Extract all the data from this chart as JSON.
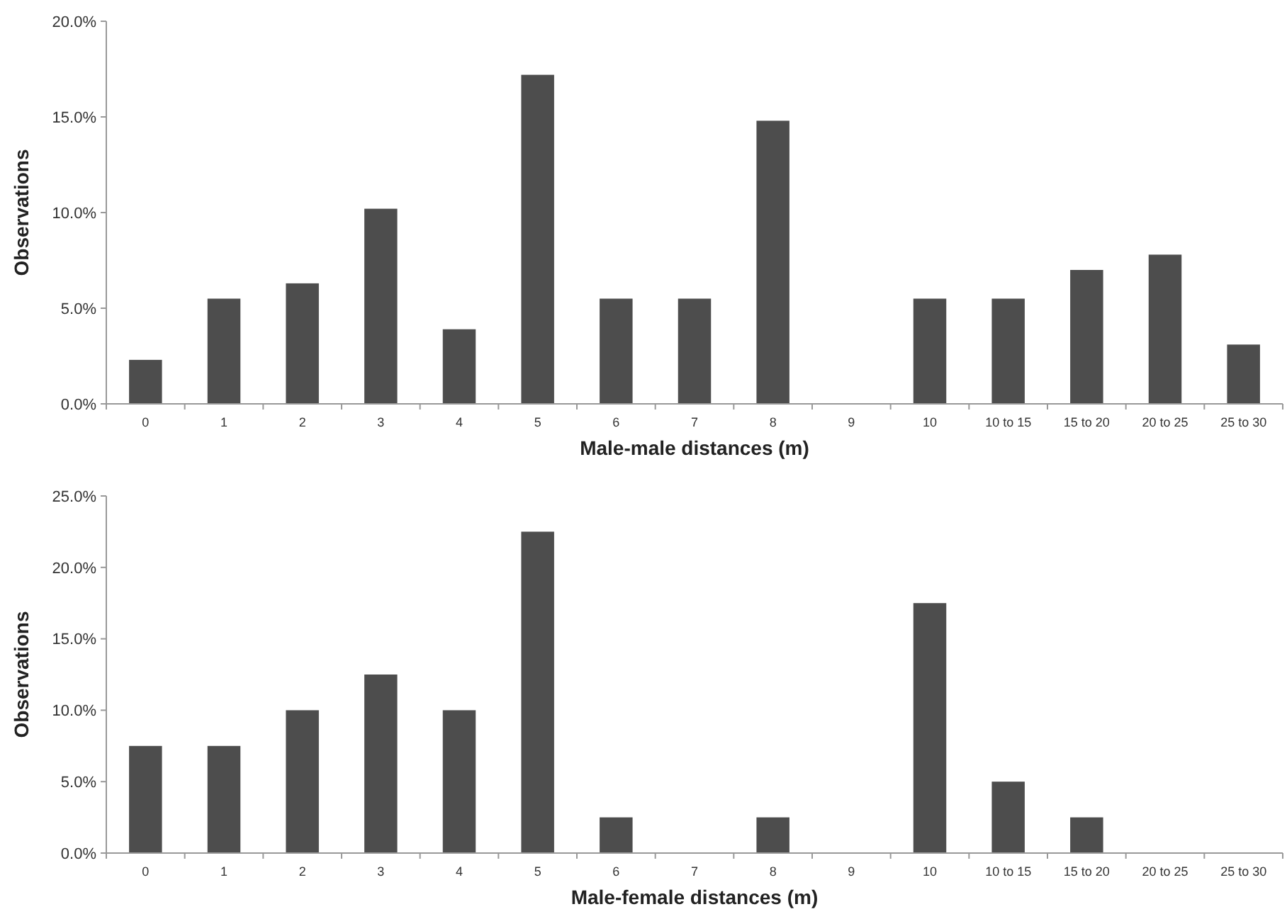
{
  "chart_data": [
    {
      "type": "bar",
      "xlabel": "Male-male distances (m)",
      "ylabel": "Observations",
      "categories": [
        "0",
        "1",
        "2",
        "3",
        "4",
        "5",
        "6",
        "7",
        "8",
        "9",
        "10",
        "10 to 15",
        "15 to 20",
        "20 to 25",
        "25 to 30"
      ],
      "color": "#4d4d4d",
      "values": [
        2.3,
        5.5,
        6.3,
        10.2,
        3.9,
        17.2,
        5.5,
        5.5,
        14.8,
        0,
        5.5,
        5.5,
        7.0,
        7.8,
        3.1
      ],
      "ylim": [
        0,
        20
      ],
      "yticks": [
        {
          "value": 0,
          "label": "0.0%"
        },
        {
          "value": 5,
          "label": "5.0%"
        },
        {
          "value": 10,
          "label": "10.0%"
        },
        {
          "value": 15,
          "label": "15.0%"
        },
        {
          "value": 20,
          "label": "20.0%"
        }
      ],
      "grid": false
    },
    {
      "type": "bar",
      "xlabel": "Male-female distances (m)",
      "ylabel": "Observations",
      "categories": [
        "0",
        "1",
        "2",
        "3",
        "4",
        "5",
        "6",
        "7",
        "8",
        "9",
        "10",
        "10 to 15",
        "15 to 20",
        "20 to 25",
        "25 to 30"
      ],
      "color": "#4d4d4d",
      "values": [
        7.5,
        7.5,
        10,
        12.5,
        10,
        22.5,
        2.5,
        0,
        2.5,
        0,
        17.5,
        5,
        2.5,
        0,
        0
      ],
      "ylim": [
        0,
        25
      ],
      "yticks": [
        {
          "value": 0,
          "label": "0.0%"
        },
        {
          "value": 5,
          "label": "5.0%"
        },
        {
          "value": 10,
          "label": "10.0%"
        },
        {
          "value": 15,
          "label": "15.0%"
        },
        {
          "value": 20,
          "label": "20.0%"
        },
        {
          "value": 25,
          "label": "25.0%"
        }
      ],
      "grid": false
    }
  ]
}
